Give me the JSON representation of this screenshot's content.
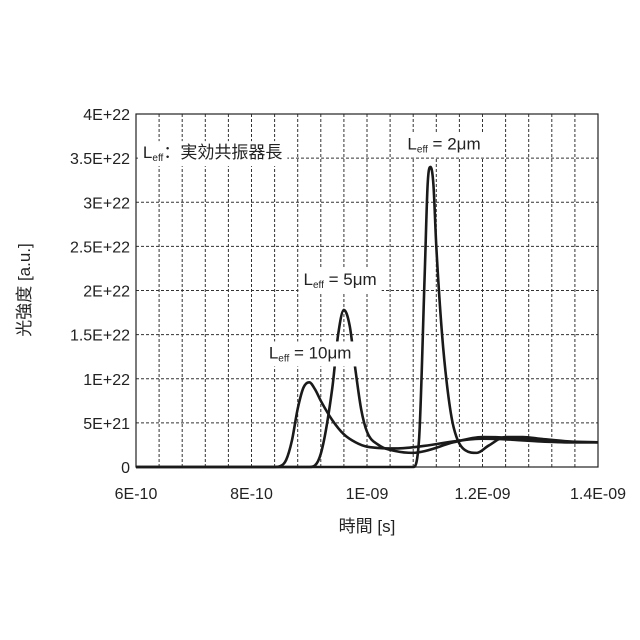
{
  "chart_data": {
    "type": "line",
    "title": "",
    "xlabel": "時間 [s]",
    "ylabel": "光強度 [a.u.]",
    "xlim": [
      6e-10,
      1.4e-09
    ],
    "ylim": [
      0,
      4e+22
    ],
    "x_ticks": [
      6e-10,
      8e-10,
      1e-09,
      1.2e-09,
      1.4e-09
    ],
    "x_tick_labels": [
      "6E-10",
      "8E-10",
      "1E-09",
      "1.2E-09",
      "1.4E-09"
    ],
    "y_ticks": [
      0,
      5e+21,
      1e+22,
      1.5e+22,
      2e+22,
      2.5e+22,
      3e+22,
      3.5e+22,
      4e+22
    ],
    "y_tick_labels": [
      "0",
      "5E+21",
      "1E+22",
      "1.5E+22",
      "2E+22",
      "2.5E+22",
      "3E+22",
      "3.5E+22",
      "4E+22"
    ],
    "grid": true,
    "legend": "none",
    "annotations": [
      {
        "main": "L",
        "sub": "eff",
        "rest": "：実効共振器長",
        "x": 6.12e-10,
        "y": 3.5e+22
      },
      {
        "main": "L",
        "sub": "eff",
        "rest": " = 2μm",
        "x": 1.07e-09,
        "y": 3.6e+22
      },
      {
        "main": "L",
        "sub": "eff",
        "rest": " = 5μm",
        "x": 8.9e-10,
        "y": 2.06e+22
      },
      {
        "main": "L",
        "sub": "eff",
        "rest": " = 10μm",
        "x": 8.3e-10,
        "y": 1.23e+22
      }
    ],
    "series": [
      {
        "x": [
          6e-10,
          8.4e-10,
          8.5e-10,
          8.6e-10,
          8.7e-10,
          8.8e-10,
          8.9e-10,
          9e-10,
          9.1e-10,
          9.2e-10,
          9.4e-10,
          9.6e-10,
          9.8e-10,
          1e-09,
          1.05e-09,
          1.1e-09,
          1.15e-09,
          1.2e-09,
          1.25e-09,
          1.3e-09,
          1.35e-09,
          1.4e-09
        ],
        "y": [
          0,
          0,
          1e+20,
          8e+20,
          3e+21,
          6.6e+21,
          9e+21,
          9.6e+21,
          8.8e+21,
          7.5e+21,
          5.3e+21,
          3.7e+21,
          2.8e+21,
          2.3e+21,
          2.1e+21,
          2.4e+21,
          2.9e+21,
          3.2e+21,
          3.1e+21,
          2.9e+21,
          2.8e+21,
          2.8e+21
        ]
      },
      {
        "x": [
          6e-10,
          9e-10,
          9.2e-10,
          9.4e-10,
          9.5e-10,
          9.6e-10,
          9.7e-10,
          9.8e-10,
          9.9e-10,
          1e-09,
          1.02e-09,
          1.05e-09,
          1.08e-09,
          1.1e-09,
          1.15e-09,
          1.2e-09,
          1.25e-09,
          1.3e-09,
          1.35e-09,
          1.4e-09
        ],
        "y": [
          0,
          0,
          1.5e+21,
          9e+21,
          1.5e+22,
          1.78e+22,
          1.6e+22,
          1.1e+22,
          6.5e+21,
          4e+21,
          2.5e+21,
          1.8e+21,
          1.6e+21,
          1.8e+21,
          2.8e+21,
          3.4e+21,
          3.3e+21,
          3e+21,
          2.8e+21,
          2.8e+21
        ]
      },
      {
        "x": [
          6e-10,
          1.08e-09,
          1.09e-09,
          1.1e-09,
          1.105e-09,
          1.11e-09,
          1.115e-09,
          1.12e-09,
          1.13e-09,
          1.14e-09,
          1.15e-09,
          1.17e-09,
          1.19e-09,
          1.21e-09,
          1.24e-09,
          1.27e-09,
          1.3e-09,
          1.35e-09,
          1.4e-09
        ],
        "y": [
          0,
          0,
          3e+21,
          2.2e+22,
          3.2e+22,
          3.4e+22,
          3.2e+22,
          2.5e+22,
          1.5e+22,
          8.5e+21,
          4.5e+21,
          1.9e+21,
          1.6e+21,
          2.4e+21,
          3.4e+21,
          3.4e+21,
          3.2e+21,
          2.9e+21,
          2.8e+21
        ]
      }
    ]
  }
}
